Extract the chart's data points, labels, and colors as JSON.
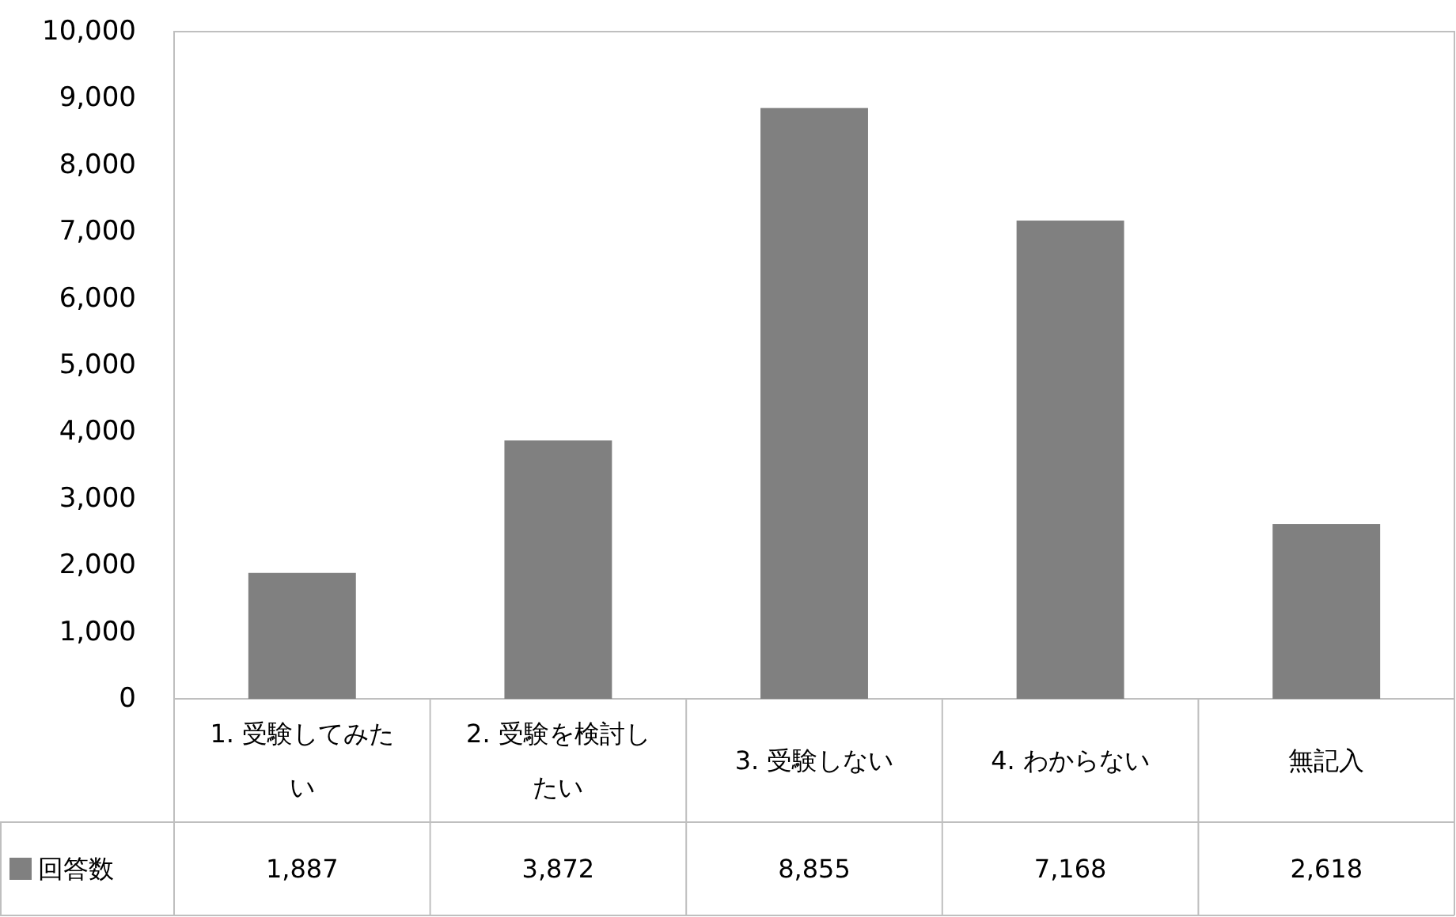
{
  "chart_data": {
    "type": "bar",
    "categories": [
      "1.  受験してみたい",
      "2.  受験を検討したい",
      "3.  受験しない",
      "4.  わからない",
      "無記入"
    ],
    "series": [
      {
        "name": "回答数",
        "color": "#808080",
        "values": [
          1887,
          3872,
          8855,
          7168,
          2618
        ],
        "value_labels": [
          "1,887",
          "3,872",
          "8,855",
          "7,168",
          "2,618"
        ]
      }
    ],
    "ylim": [
      0,
      10000
    ],
    "yticks": [
      0,
      {
        "value": 1000,
        "label": "1,000"
      },
      {
        "value": 2000,
        "label": "2,000"
      },
      {
        "value": 3000,
        "label": "3,000"
      },
      {
        "value": 4000,
        "label": "4,000"
      },
      {
        "value": 5000,
        "label": "5,000"
      },
      {
        "value": 6000,
        "label": "6,000"
      },
      {
        "value": 7000,
        "label": "7,000"
      },
      {
        "value": 8000,
        "label": "8,000"
      },
      {
        "value": 9000,
        "label": "9,000"
      },
      {
        "value": 10000,
        "label": "10,000"
      }
    ],
    "legend": "bottom",
    "grid": false
  }
}
